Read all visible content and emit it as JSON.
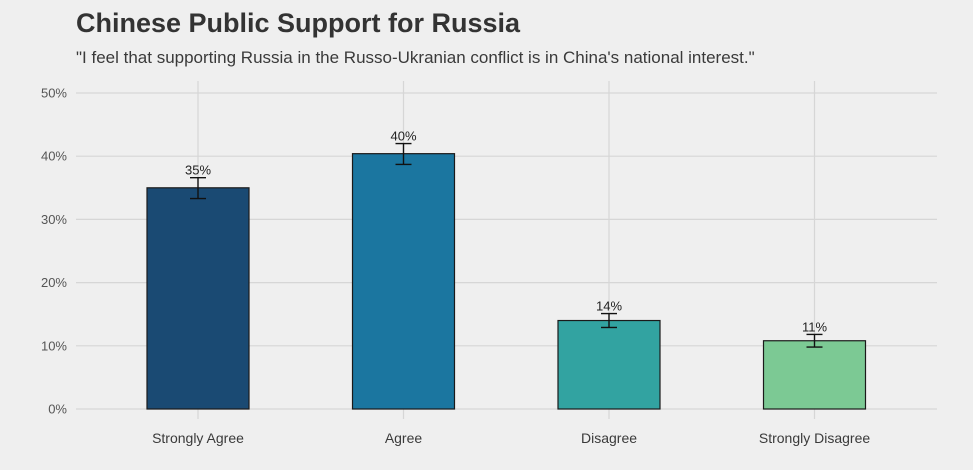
{
  "chart_data": {
    "type": "bar",
    "title": "Chinese Public Support for Russia",
    "subtitle": "\"I feel that supporting Russia in the Russo-Ukranian conflict is in China's national interest.\"",
    "xlabel": "",
    "ylabel": "",
    "categories": [
      "Strongly Agree",
      "Agree",
      "Disagree",
      "Strongly Disagree"
    ],
    "values": [
      35,
      40.4,
      14,
      10.8
    ],
    "error_low": [
      33.3,
      38.7,
      12.9,
      9.8
    ],
    "error_high": [
      36.6,
      42.0,
      15.1,
      11.8
    ],
    "data_labels": [
      "35%",
      "40%",
      "14%",
      "11%"
    ],
    "colors": [
      "#1a4a73",
      "#1b76a0",
      "#32a3a1",
      "#7cc994"
    ],
    "ylim": [
      0,
      50
    ],
    "yticks": [
      0,
      10,
      20,
      30,
      40,
      50
    ],
    "ytick_labels": [
      "0%",
      "10%",
      "20%",
      "30%",
      "40%",
      "50%"
    ],
    "grid": true,
    "legend": "none"
  }
}
